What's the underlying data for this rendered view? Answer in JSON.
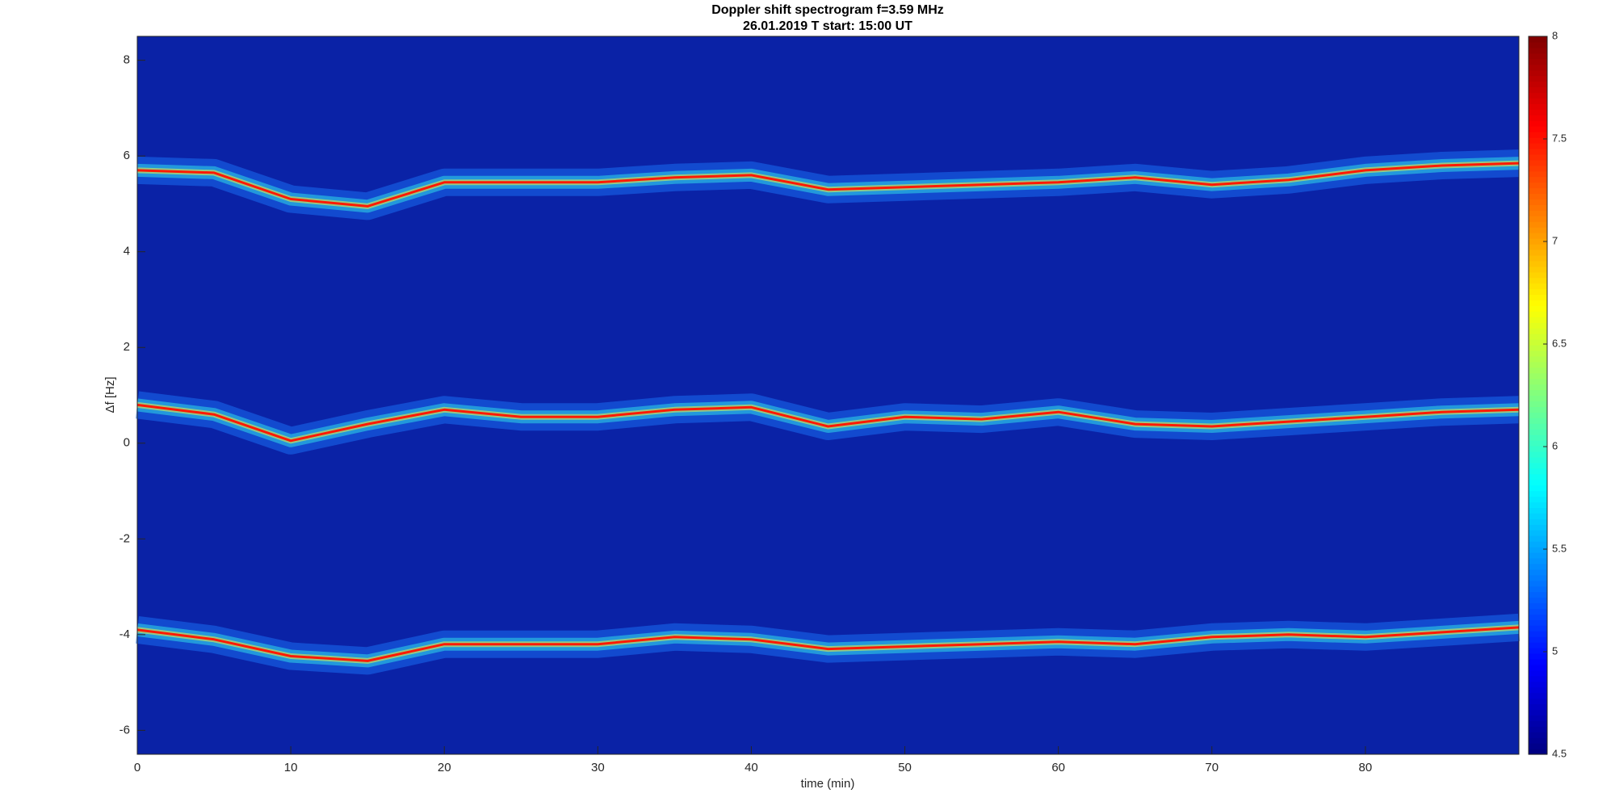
{
  "chart_data": {
    "type": "spectrogram",
    "title": "Doppler shift spectrogram f=3.59 MHz",
    "subtitle": "26.01.2019   T start: 15:00 UT",
    "x_label": "time (min)",
    "y_label": "Δf [Hz]",
    "xlim": [
      0,
      90
    ],
    "xticks": [
      0,
      10,
      20,
      30,
      40,
      50,
      60,
      70,
      80
    ],
    "ylim": [
      -6.5,
      8.5
    ],
    "yticks": [
      -6,
      -4,
      -2,
      0,
      2,
      4,
      6,
      8
    ],
    "colormap": "jet",
    "clim": [
      4.5,
      8
    ],
    "cticks": [
      4.5,
      5,
      5.5,
      6,
      6.5,
      7,
      7.5,
      8
    ],
    "background": "#0a22a6",
    "band_colors": [
      "#1a6cf0",
      "#2fd8e8",
      "#f0f040"
    ],
    "grid": false,
    "x": [
      0,
      5,
      10,
      15,
      20,
      25,
      30,
      35,
      40,
      45,
      50,
      55,
      60,
      65,
      70,
      75,
      80,
      85,
      90
    ],
    "series": [
      {
        "color": "#ff1a00",
        "values": [
          5.7,
          5.65,
          5.1,
          4.95,
          5.45,
          5.45,
          5.45,
          5.55,
          5.6,
          5.3,
          5.35,
          5.4,
          5.45,
          5.55,
          5.4,
          5.5,
          5.7,
          5.8,
          5.85
        ]
      },
      {
        "color": "#ff1a00",
        "values": [
          0.8,
          0.6,
          0.05,
          0.4,
          0.7,
          0.55,
          0.55,
          0.7,
          0.75,
          0.35,
          0.55,
          0.5,
          0.65,
          0.4,
          0.35,
          0.45,
          0.55,
          0.65,
          0.7
        ]
      },
      {
        "color": "#ff1a00",
        "values": [
          -3.9,
          -4.1,
          -4.45,
          -4.55,
          -4.2,
          -4.2,
          -4.2,
          -4.05,
          -4.1,
          -4.3,
          -4.25,
          -4.2,
          -4.15,
          -4.2,
          -4.05,
          -4.0,
          -4.05,
          -3.95,
          -3.85
        ]
      }
    ]
  }
}
